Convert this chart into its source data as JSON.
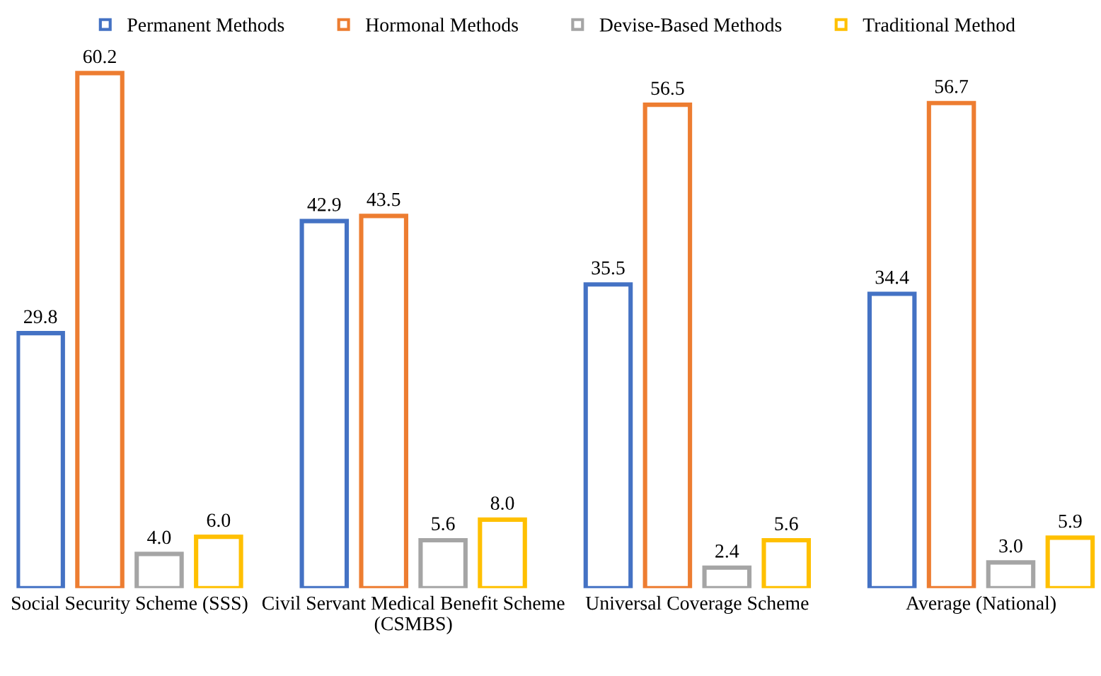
{
  "chart_data": {
    "type": "bar",
    "categories": [
      "Social Security Scheme (SSS)",
      "Civil Servant Medical Benefit Scheme\n(CSMBS)",
      "Universal Coverage Scheme",
      "Average (National)"
    ],
    "series": [
      {
        "name": "Permanent Methods",
        "color": "#4472c4",
        "values": [
          29.8,
          42.9,
          35.5,
          34.4
        ],
        "value_labels": [
          "29.8",
          "42.9",
          "35.5",
          "34.4"
        ]
      },
      {
        "name": "Hormonal Methods",
        "color": "#ed7d31",
        "values": [
          60.2,
          43.5,
          56.5,
          56.7
        ],
        "value_labels": [
          "60.2",
          "43.5",
          "56.5",
          "56.7"
        ]
      },
      {
        "name": "Devise-Based Methods",
        "color": "#a5a5a5",
        "values": [
          4.0,
          5.6,
          2.4,
          3.0
        ],
        "value_labels": [
          "4.0",
          "5.6",
          "2.4",
          "3.0"
        ]
      },
      {
        "name": "Traditional Method",
        "color": "#ffc000",
        "values": [
          6.0,
          8.0,
          5.6,
          5.9
        ],
        "value_labels": [
          "6.0",
          "8.0",
          "5.6",
          "5.9"
        ]
      }
    ],
    "legend": "top",
    "grid": false
  }
}
